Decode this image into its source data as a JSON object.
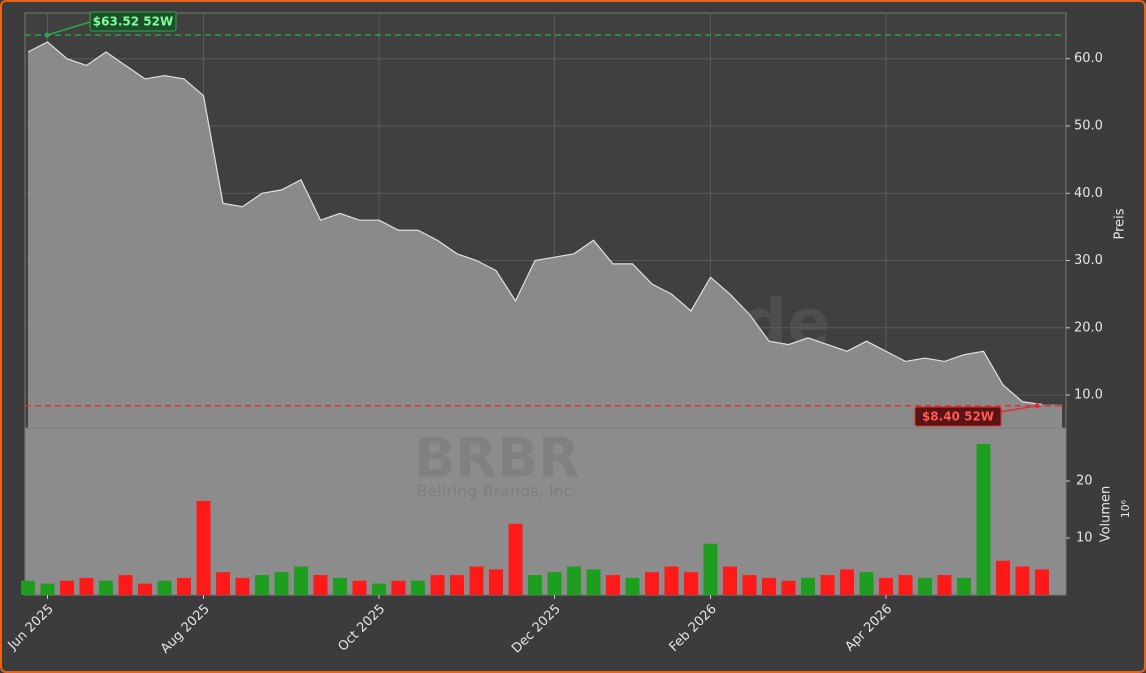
{
  "chart_data": [
    {
      "type": "area",
      "color": "#8a8a8a",
      "line_color": "#e0e0e0",
      "categories": [
        null,
        "Jun 2025",
        null,
        null,
        null,
        null,
        null,
        null,
        null,
        "Aug 2025",
        null,
        null,
        null,
        null,
        null,
        null,
        null,
        null,
        "Oct 2025",
        null,
        null,
        null,
        null,
        null,
        null,
        null,
        null,
        "Dec 2025",
        null,
        null,
        null,
        null,
        null,
        null,
        null,
        "Feb 2026",
        null,
        null,
        null,
        null,
        null,
        null,
        null,
        null,
        "Apr 2026",
        null,
        null,
        null,
        null,
        null,
        null,
        null,
        null
      ],
      "values": [
        61,
        62.5,
        60,
        59,
        61,
        59,
        57,
        57.5,
        57,
        54.5,
        38.5,
        38,
        40,
        40.5,
        42,
        36,
        37,
        36,
        36,
        34.5,
        34.5,
        33,
        31,
        30,
        28.5,
        24,
        30,
        30.5,
        31,
        33,
        29.5,
        29.5,
        26.5,
        25,
        22.5,
        27.5,
        25,
        22,
        18,
        17.5,
        18.5,
        17.5,
        16.5,
        18,
        16.5,
        15,
        15.5,
        15,
        16,
        16.5,
        11.5,
        9,
        8.6
      ],
      "ylim": [
        5.1,
        66.8
      ],
      "yticks": [
        {
          "value": 10,
          "label": "10.0"
        },
        {
          "value": 20,
          "label": "20.0"
        },
        {
          "value": 30,
          "label": "30.0"
        },
        {
          "value": 40,
          "label": "40.0"
        },
        {
          "value": 50,
          "label": "50.0"
        },
        {
          "value": 60,
          "label": "60.0"
        }
      ],
      "ylabel": "Preis",
      "grid": true,
      "annotations": [
        {
          "value": 63.52,
          "label": "$63.52 52W",
          "color": "#2ea84f",
          "text_color": "#7dff9a",
          "box": "#1f4f2a",
          "corner": "top-left"
        },
        {
          "value": 8.4,
          "label": "$8.40 52W",
          "color": "#e03030",
          "text_color": "#ff5a5a",
          "box": "#5a1414",
          "corner": "bottom-right"
        }
      ]
    },
    {
      "type": "bar",
      "up_color": "#1e9e1e",
      "down_color": "#ff1a1a",
      "values": [
        2.5,
        2,
        2.5,
        3,
        2.5,
        3.5,
        2,
        2.5,
        3,
        16.5,
        4,
        3,
        3.5,
        4,
        5,
        3.5,
        3,
        2.5,
        2,
        2.5,
        2.5,
        3.5,
        3.5,
        5,
        4.5,
        12.5,
        3.5,
        4,
        5,
        4.5,
        3.5,
        3,
        4,
        5,
        4,
        9,
        5,
        3.5,
        3,
        2.5,
        3,
        3.5,
        4.5,
        4,
        3,
        3.5,
        3,
        3.5,
        3,
        26.5,
        6,
        5,
        4.5
      ],
      "ylim": [
        0,
        29.3
      ],
      "yticks": [
        10,
        20
      ],
      "ylabel": "Volumen",
      "multiplier": "10⁶"
    }
  ],
  "watermark": {
    "site": "forexsignale.trade",
    "symbol": "BRBR",
    "company": "Bellring Brands, Inc."
  }
}
